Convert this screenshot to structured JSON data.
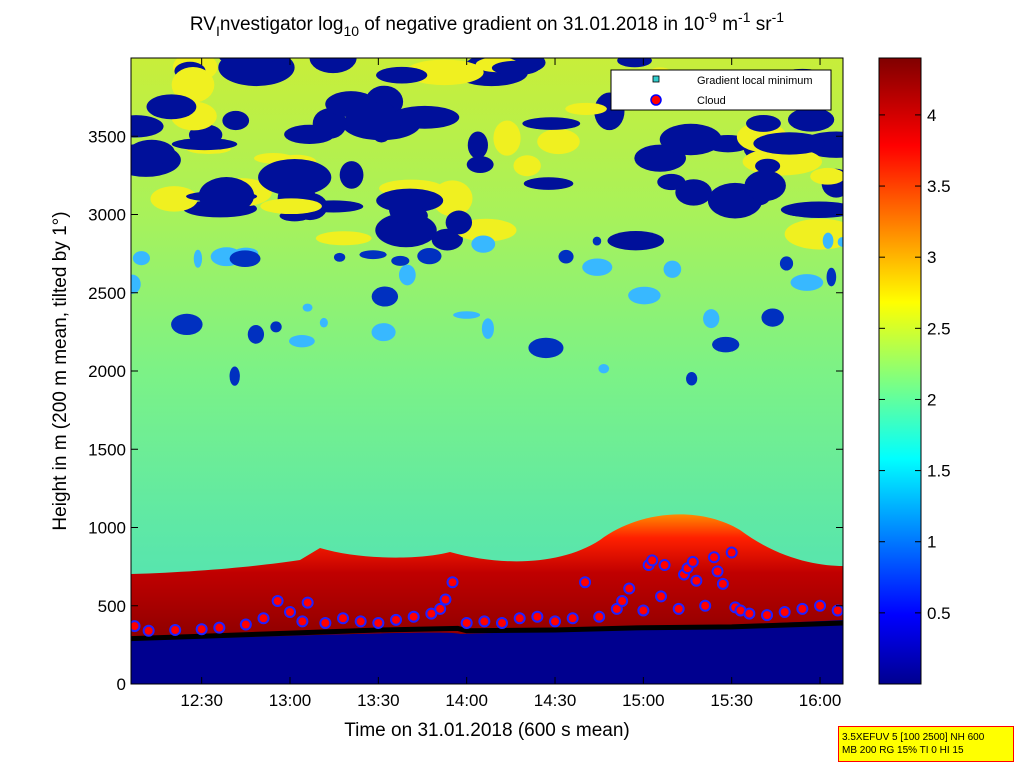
{
  "chart_data": {
    "type": "heatmap",
    "title": {
      "prefix": "RV",
      "sub_i": "I",
      "part1": "nvestigator log",
      "sub_10": "10",
      "part2": " of negative gradient on 31.01.2018 in 10",
      "sup_1": "-9",
      "part3": " m",
      "sup_2": "-1",
      "part4": " sr",
      "sup_3": "-1"
    },
    "xlabel": "Time on 31.01.2018 (600 s mean)",
    "ylabel": "Height in m (200 m mean, tilted by 1°)",
    "x_range_hours": [
      12.1,
      16.13
    ],
    "ylim": [
      0,
      4000
    ],
    "x_ticks": [
      {
        "value": 12.5,
        "label": "12:30"
      },
      {
        "value": 13.0,
        "label": "13:00"
      },
      {
        "value": 13.5,
        "label": "13:30"
      },
      {
        "value": 14.0,
        "label": "14:00"
      },
      {
        "value": 14.5,
        "label": "14:30"
      },
      {
        "value": 15.0,
        "label": "15:00"
      },
      {
        "value": 15.5,
        "label": "15:30"
      },
      {
        "value": 16.0,
        "label": "16:00"
      }
    ],
    "y_ticks": [
      {
        "value": 0,
        "label": "0"
      },
      {
        "value": 500,
        "label": "500"
      },
      {
        "value": 1000,
        "label": "1000"
      },
      {
        "value": 1500,
        "label": "1500"
      },
      {
        "value": 2000,
        "label": "2000"
      },
      {
        "value": 2500,
        "label": "2500"
      },
      {
        "value": 3000,
        "label": "3000"
      },
      {
        "value": 3500,
        "label": "3500"
      }
    ],
    "colorbar": {
      "range": [
        0,
        4.4
      ],
      "ticks": [
        {
          "value": 0.5,
          "label": "0.5"
        },
        {
          "value": 1.0,
          "label": "1"
        },
        {
          "value": 1.5,
          "label": "1.5"
        },
        {
          "value": 2.0,
          "label": "2"
        },
        {
          "value": 2.5,
          "label": "2.5"
        },
        {
          "value": 3.0,
          "label": "3"
        },
        {
          "value": 3.5,
          "label": "3.5"
        },
        {
          "value": 4.0,
          "label": "4"
        }
      ]
    },
    "legend": {
      "placement": "top-right",
      "entries": [
        {
          "name": "Gradient local minimum",
          "marker": "square",
          "color": "#33cccc"
        },
        {
          "name": "Cloud",
          "marker": "circle",
          "color": "#ff0000"
        }
      ]
    },
    "gradient_local_minimum": {
      "time": [
        12.1,
        12.5,
        13.0,
        13.5,
        13.95,
        14.0,
        14.5,
        15.0,
        15.5,
        16.13
      ],
      "height": [
        290,
        305,
        325,
        345,
        355,
        340,
        345,
        360,
        365,
        390
      ]
    },
    "cloud": {
      "time": [
        12.12,
        12.2,
        12.35,
        12.5,
        12.6,
        12.75,
        12.85,
        12.93,
        13.0,
        13.07,
        13.1,
        13.2,
        13.3,
        13.4,
        13.5,
        13.6,
        13.7,
        13.8,
        13.85,
        13.88,
        13.92,
        14.0,
        14.1,
        14.2,
        14.3,
        14.4,
        14.5,
        14.6,
        14.67,
        14.75,
        14.85,
        14.88,
        14.92,
        15.0,
        15.03,
        15.05,
        15.1,
        15.12,
        15.2,
        15.23,
        15.25,
        15.28,
        15.3,
        15.35,
        15.4,
        15.42,
        15.45,
        15.5,
        15.52,
        15.55,
        15.6,
        15.7,
        15.8,
        15.9,
        16.0,
        16.1
      ],
      "height": [
        370,
        340,
        345,
        350,
        360,
        380,
        420,
        530,
        460,
        400,
        520,
        390,
        420,
        400,
        390,
        410,
        430,
        450,
        480,
        540,
        650,
        390,
        400,
        390,
        420,
        430,
        400,
        420,
        650,
        430,
        480,
        530,
        610,
        470,
        760,
        790,
        560,
        760,
        480,
        700,
        740,
        780,
        660,
        500,
        810,
        720,
        640,
        840,
        490,
        470,
        450,
        440,
        460,
        480,
        500,
        470
      ]
    },
    "info_box": {
      "line1": "3.5XEFUV 5 [100 2500] NH 600",
      "line2": "MB 200 RG 15% TI 0 HI 15"
    }
  }
}
